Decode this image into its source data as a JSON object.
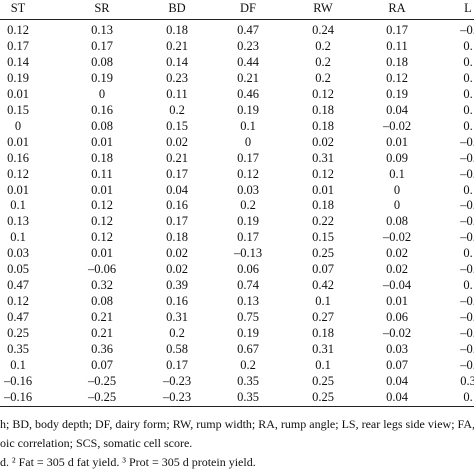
{
  "table": {
    "header": [
      "ST",
      "SR",
      "BD",
      "DF",
      "RW",
      "RA",
      "L"
    ],
    "rows": [
      [
        "0.12",
        "0.13",
        "0.18",
        "0.47",
        "0.24",
        "0.17",
        "–0."
      ],
      [
        "0.17",
        "0.17",
        "0.21",
        "0.23",
        "0.2",
        "0.11",
        "0."
      ],
      [
        "0.14",
        "0.08",
        "0.14",
        "0.44",
        "0.2",
        "0.18",
        "0."
      ],
      [
        "0.19",
        "0.19",
        "0.23",
        "0.21",
        "0.2",
        "0.12",
        "0."
      ],
      [
        "0.01",
        "0",
        "0.11",
        "0.46",
        "0.12",
        "0.19",
        "0."
      ],
      [
        "0.15",
        "0.16",
        "0.2",
        "0.19",
        "0.18",
        "0.04",
        "0."
      ],
      [
        "0",
        "0.08",
        "0.15",
        "0.1",
        "0.18",
        "–0.02",
        "0."
      ],
      [
        "0.01",
        "0.01",
        "0.02",
        "0",
        "0.02",
        "0.01",
        "–0."
      ],
      [
        "0.16",
        "0.18",
        "0.21",
        "0.17",
        "0.31",
        "0.09",
        "–0."
      ],
      [
        "0.12",
        "0.11",
        "0.17",
        "0.12",
        "0.12",
        "0.1",
        "–0."
      ],
      [
        "0.01",
        "0.01",
        "0.04",
        "0.03",
        "0.01",
        "0",
        "0."
      ],
      [
        "0.1",
        "0.12",
        "0.16",
        "0.2",
        "0.18",
        "0",
        "–0."
      ],
      [
        "0.13",
        "0.12",
        "0.17",
        "0.19",
        "0.22",
        "0.08",
        "–0."
      ],
      [
        "0.1",
        "0.12",
        "0.18",
        "0.17",
        "0.15",
        "–0.02",
        "–0."
      ],
      [
        "0.03",
        "0.01",
        "0.02",
        "–0.13",
        "0.25",
        "0.02",
        "0."
      ],
      [
        "0.05",
        "–0.06",
        "0.02",
        "0.06",
        "0.07",
        "0.02",
        "–0."
      ],
      [
        "0.47",
        "0.32",
        "0.39",
        "0.74",
        "0.42",
        "–0.04",
        "0."
      ],
      [
        "0.12",
        "0.08",
        "0.16",
        "0.13",
        "0.1",
        "0.01",
        "–0."
      ],
      [
        "0.47",
        "0.21",
        "0.31",
        "0.75",
        "0.27",
        "0.06",
        "–0."
      ],
      [
        "0.25",
        "0.21",
        "0.2",
        "0.19",
        "0.18",
        "–0.02",
        "–0."
      ],
      [
        "0.35",
        "0.36",
        "0.58",
        "0.67",
        "0.31",
        "0.03",
        "–0."
      ],
      [
        "0.1",
        "0.07",
        "0.17",
        "0.2",
        "0.1",
        "0.07",
        "–0."
      ],
      [
        "–0.16",
        "–0.25",
        "–0.23",
        "0.35",
        "0.25",
        "0.04",
        "0.3"
      ],
      [
        "–0.16",
        "–0.25",
        "–0.23",
        "0.35",
        "0.25",
        "0.04",
        "0."
      ]
    ]
  },
  "footnotes": [
    "h; BD, body depth; DF, dairy form; RW, rump width; RA, rump angle; LS, rear legs side view; FA,",
    "oic correlation; SCS, somatic cell score.",
    "d. ² Fat = 305 d fat yield. ³ Prot = 305 d protein yield."
  ]
}
